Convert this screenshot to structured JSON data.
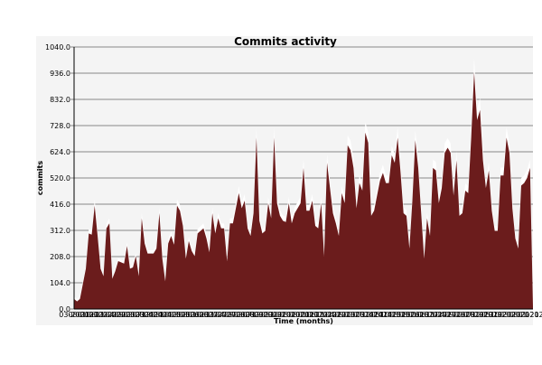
{
  "chart_data": {
    "type": "area",
    "title": "Commits activity",
    "xlabel": "Time (months)",
    "ylabel": "commits",
    "ylim": [
      0,
      1040
    ],
    "yticks": [
      "0.0",
      "104.0",
      "208.0",
      "312.0",
      "416.0",
      "520.0",
      "624.0",
      "728.0",
      "832.0",
      "936.0",
      "1040.0"
    ],
    "xticks": [
      "03-2001",
      "08-2001",
      "01-2002",
      "06-2002",
      "11-2002",
      "04-2003",
      "09-2003",
      "02-2004",
      "07-2004",
      "12-2004",
      "05-2005",
      "10-2005",
      "03-2006",
      "08-2006",
      "01-2007",
      "06-2007",
      "11-2007",
      "04-2008",
      "09-2008",
      "02-2009",
      "07-2009",
      "12-2009",
      "05-2010",
      "10-2010",
      "03-2011",
      "08-2011",
      "01-2012",
      "06-2012",
      "11-2012",
      "04-2013",
      "09-2013",
      "02-2014",
      "07-2014",
      "12-2014",
      "05-2015",
      "10-2015",
      "03-2016",
      "08-2016",
      "01-2017",
      "06-2017",
      "11-2017",
      "04-2018",
      "09-2018",
      "02-2019",
      "07-2019",
      "12-2019",
      "05-2020",
      "10-2020",
      "03-2021",
      "08-2021",
      "01-2022"
    ],
    "grid": true,
    "colors": {
      "fill": "#6b1c1c",
      "shadow": "#ffffff",
      "background": "#f4f4f4",
      "grid": "#666666"
    },
    "series": [
      {
        "values": [
          40,
          30,
          40,
          100,
          160,
          300,
          295,
          410,
          290,
          160,
          130,
          320,
          340,
          120,
          150,
          190,
          185,
          180,
          250,
          160,
          165,
          210,
          130,
          360,
          260,
          220,
          220,
          220,
          240,
          380,
          200,
          110,
          260,
          290,
          255,
          410,
          390,
          330,
          200,
          270,
          230,
          210,
          300,
          310,
          320,
          280,
          225,
          380,
          300,
          360,
          320,
          320,
          190,
          340,
          340,
          400,
          460,
          400,
          430,
          320,
          290,
          380,
          680,
          350,
          300,
          310,
          420,
          360,
          680,
          420,
          370,
          350,
          345,
          420,
          340,
          380,
          400,
          420,
          560,
          390,
          390,
          430,
          330,
          320,
          420,
          210,
          580,
          480,
          380,
          340,
          290,
          460,
          420,
          650,
          630,
          560,
          400,
          500,
          470,
          700,
          660,
          370,
          390,
          450,
          510,
          540,
          500,
          500,
          610,
          580,
          680,
          540,
          380,
          370,
          240,
          430,
          670,
          560,
          380,
          200,
          360,
          290,
          560,
          550,
          420,
          480,
          620,
          640,
          620,
          450,
          590,
          370,
          380,
          470,
          460,
          680,
          940,
          750,
          790,
          590,
          480,
          550,
          390,
          310,
          310,
          530,
          530,
          680,
          620,
          400,
          280,
          240,
          490,
          500,
          520,
          560,
          10
        ]
      }
    ]
  }
}
